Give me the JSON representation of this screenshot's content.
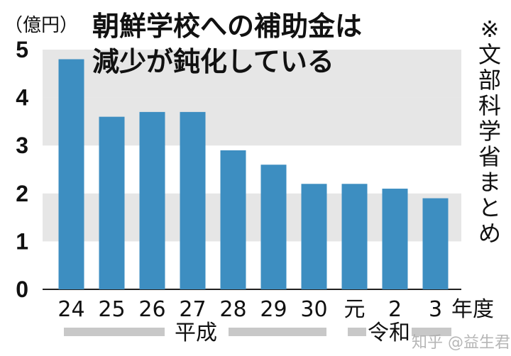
{
  "chart_data": {
    "type": "bar",
    "title_lines": [
      "朝鮮学校への補助金は",
      "減少が鈍化している"
    ],
    "y_unit": "（億円）",
    "x_unit": "年度",
    "source_note": "※文部科学省まとめ",
    "era_labels": [
      "平成",
      "令和"
    ],
    "categories": [
      "24",
      "25",
      "26",
      "27",
      "28",
      "29",
      "30",
      "元",
      "2",
      "3"
    ],
    "values": [
      4.8,
      3.6,
      3.7,
      3.7,
      2.9,
      2.6,
      2.2,
      2.2,
      2.1,
      1.9
    ],
    "ylim": [
      0,
      5
    ],
    "yticks": [
      "0",
      "1",
      "2",
      "3",
      "4",
      "5"
    ],
    "grid": "alternating horizontal bands",
    "colors": {
      "bar": "#3d8ec1",
      "band": "#e6e6e6",
      "era_bar": "#c8c8c8"
    }
  },
  "watermark": "知乎 @益生君"
}
